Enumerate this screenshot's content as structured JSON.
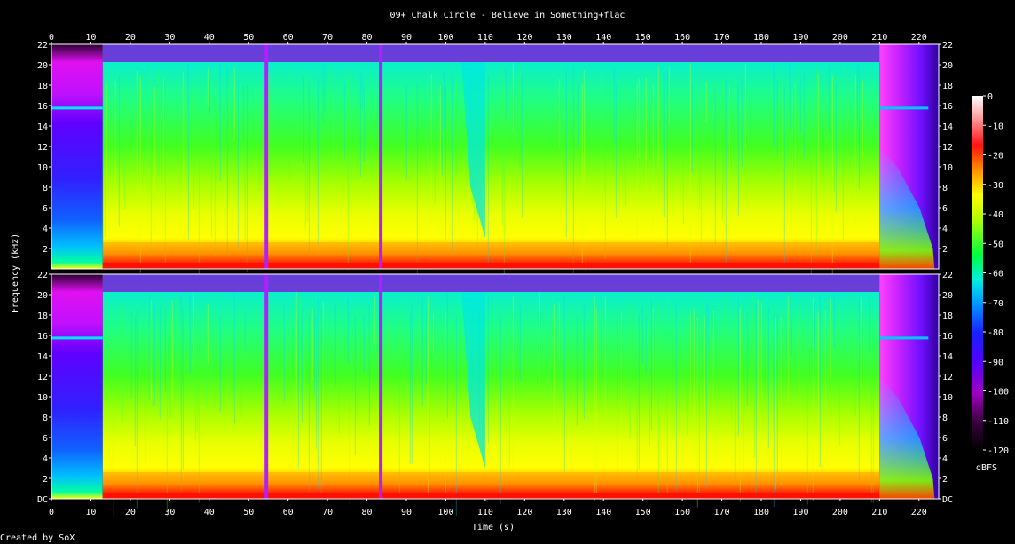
{
  "title": "09+ Chalk Circle - Believe in Something+flac",
  "credit": "Created by SoX",
  "colors": {
    "background": "#000000",
    "text": "#ffffff"
  },
  "chart_data": {
    "type": "heatmap",
    "title": "09+ Chalk Circle - Believe in Something+flac",
    "xlabel": "Time (s)",
    "ylabel": "Frequency (kHz)",
    "xlim": [
      0,
      225
    ],
    "ylim": [
      0,
      22
    ],
    "x_ticks": [
      "0",
      "10",
      "20",
      "30",
      "40",
      "50",
      "60",
      "70",
      "80",
      "90",
      "100",
      "110",
      "120",
      "130",
      "140",
      "150",
      "160",
      "170",
      "180",
      "190",
      "200",
      "210",
      "220"
    ],
    "y_ticks": [
      "DC",
      "2",
      "4",
      "6",
      "8",
      "10",
      "12",
      "14",
      "16",
      "18",
      "20",
      "22"
    ],
    "channels": 2,
    "colorbar": {
      "label": "dBFS",
      "ticks": [
        "0",
        "-10",
        "-20",
        "-30",
        "-40",
        "-50",
        "-60",
        "-70",
        "-80",
        "-90",
        "-100",
        "-110",
        "-120"
      ],
      "range": [
        -120,
        0
      ]
    },
    "features": {
      "music_start_s": 13,
      "music_end_s": 210,
      "tone_khz": 15.75,
      "silence_gaps_s": [
        54.5,
        83.5
      ],
      "mid_dip_s": [
        104,
        110
      ]
    }
  }
}
